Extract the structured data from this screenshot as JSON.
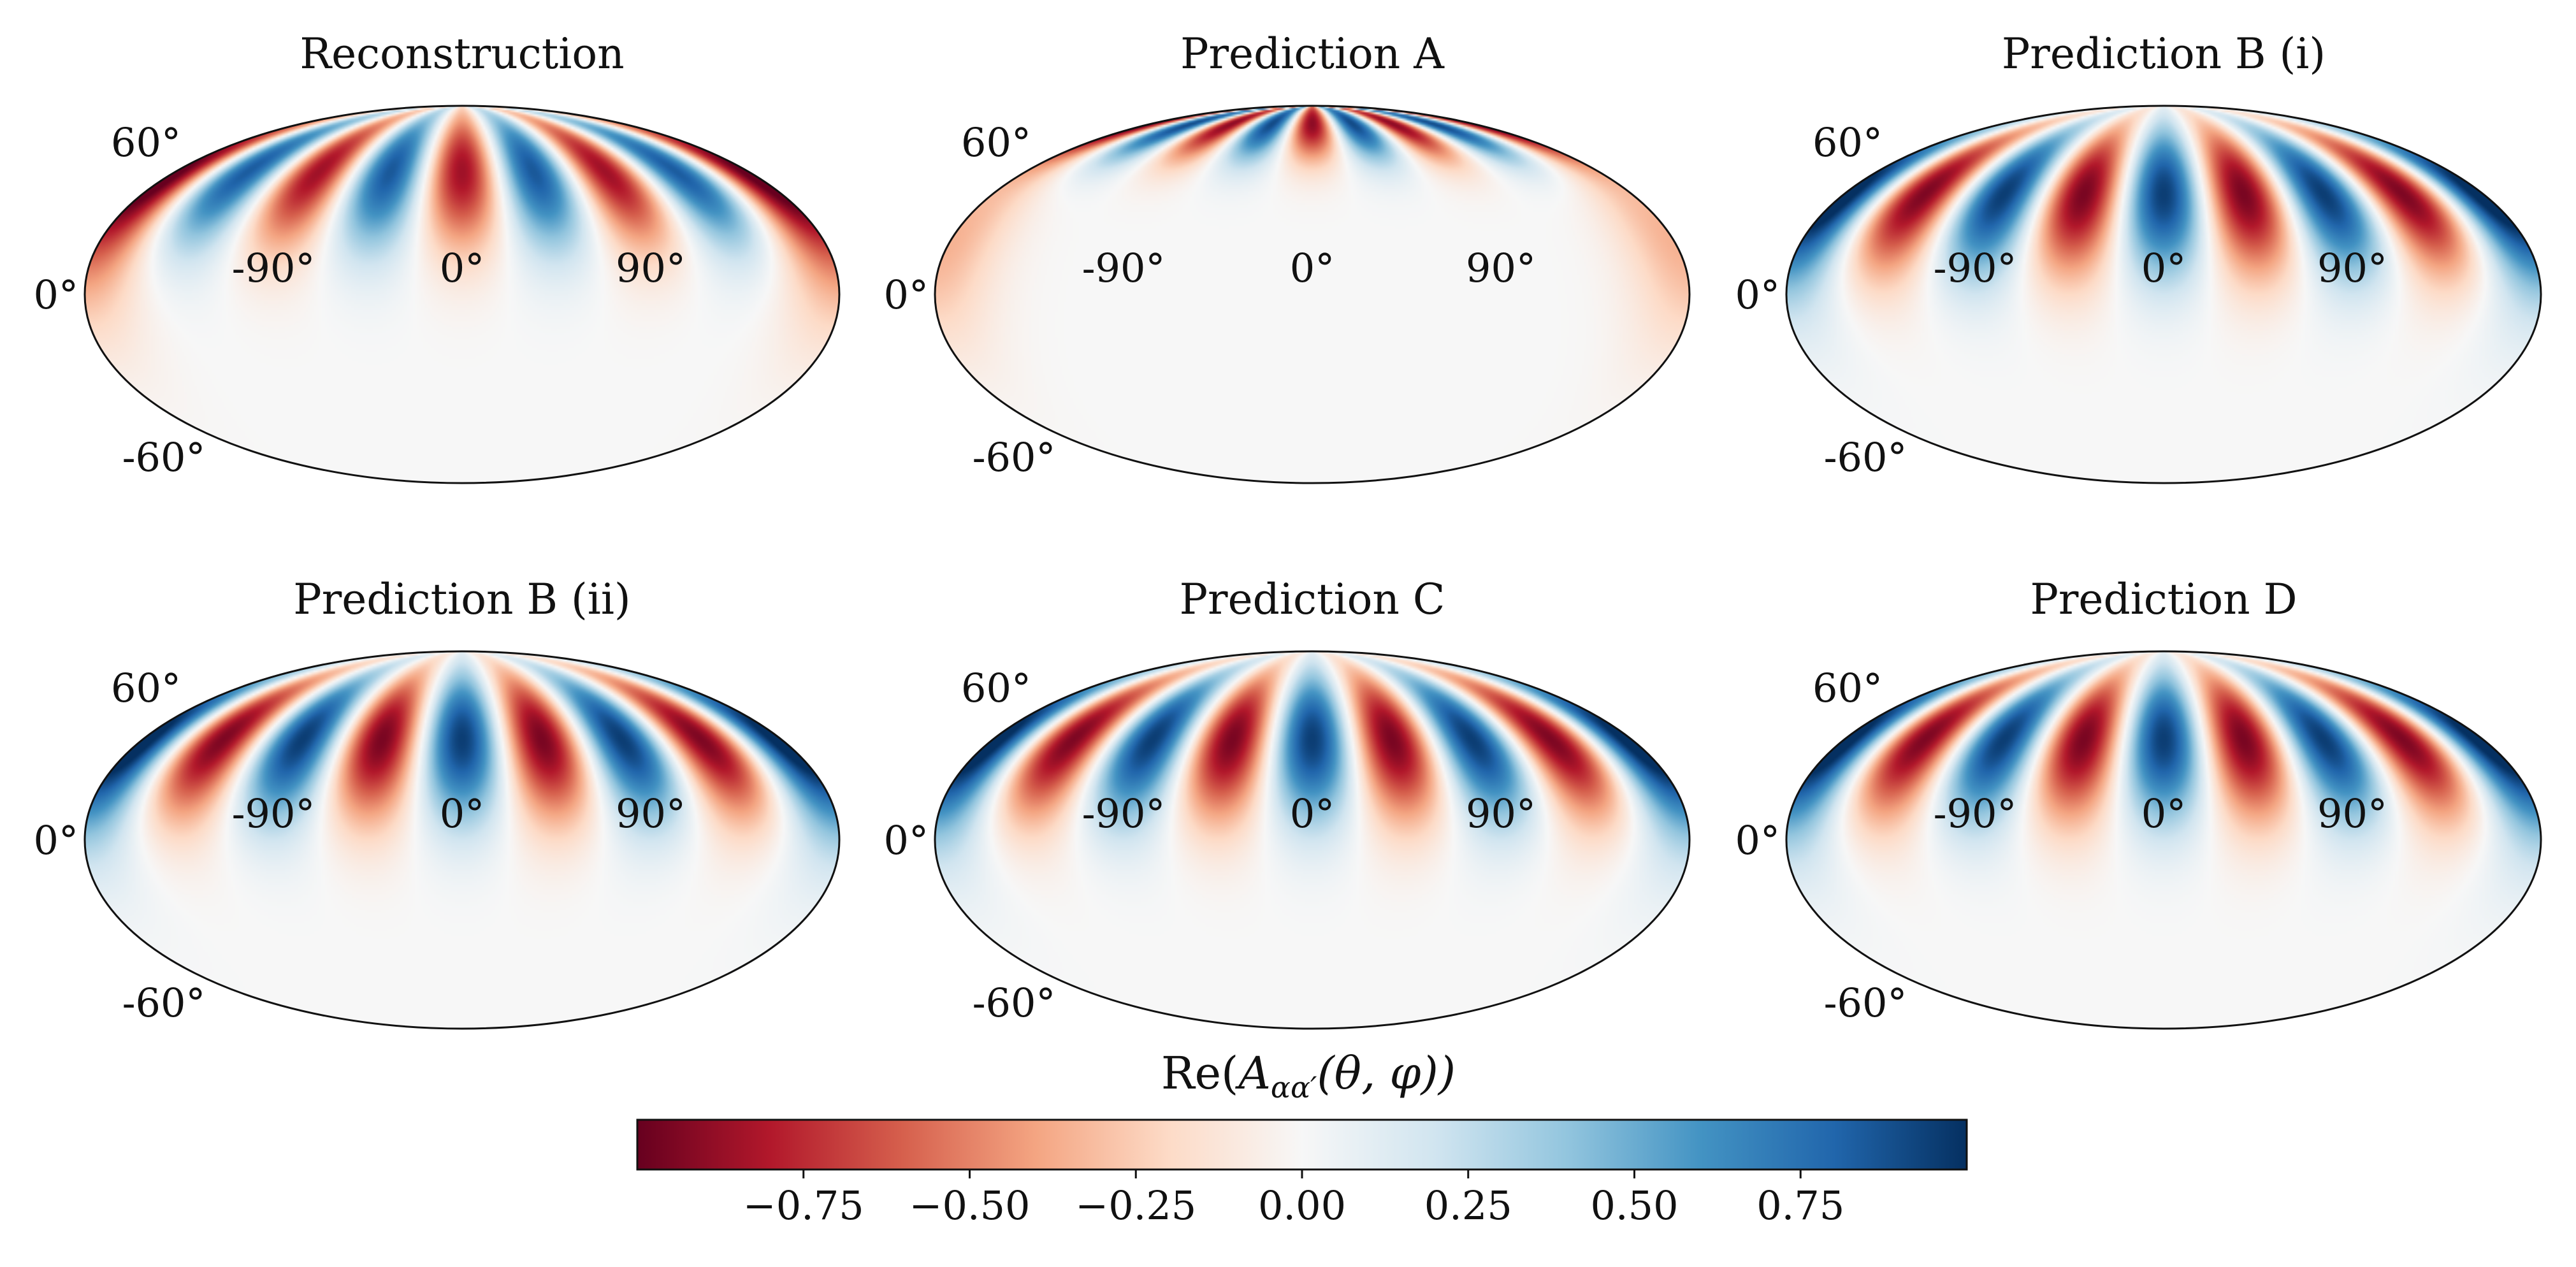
{
  "chart_data": {
    "type": "heatmap",
    "projection": "mollweide",
    "layout": {
      "rows": 2,
      "cols": 3
    },
    "colormap": "RdBu",
    "colormap_stops": [
      "#67001f",
      "#b2182b",
      "#d6604d",
      "#f4a582",
      "#fddbc7",
      "#f7f7f7",
      "#d1e5f0",
      "#92c5de",
      "#4393c3",
      "#2166ac",
      "#053061"
    ],
    "color_range": [
      -1,
      1
    ],
    "lat_tick_labels": [
      "60°",
      "0°",
      "-60°"
    ],
    "lon_tick_labels": [
      "-90°",
      "0°",
      "90°"
    ],
    "panels": [
      {
        "title": "Reconstruction",
        "pattern": {
          "m": 4,
          "phase": "cos",
          "sign": -1,
          "amp": 0.85,
          "lat_center": 50,
          "lat_width": 32,
          "edge_sign": -1
        }
      },
      {
        "title": "Prediction A",
        "pattern": {
          "m": 4,
          "phase": "cos",
          "sign": -1,
          "amp": 0.9,
          "lat_center": 75,
          "lat_width": 20,
          "edge_sign": -1
        }
      },
      {
        "title": "Prediction B (i)",
        "pattern": {
          "m": 4,
          "phase": "cos",
          "sign": 1,
          "amp": 0.95,
          "lat_center": 40,
          "lat_width": 32,
          "edge_sign": 1
        }
      },
      {
        "title": "Prediction B (ii)",
        "pattern": {
          "m": 4,
          "phase": "cos",
          "sign": 1,
          "amp": 0.95,
          "lat_center": 40,
          "lat_width": 32,
          "edge_sign": 1
        }
      },
      {
        "title": "Prediction C",
        "pattern": {
          "m": 4,
          "phase": "cos",
          "sign": 1,
          "amp": 0.95,
          "lat_center": 40,
          "lat_width": 32,
          "edge_sign": 1
        }
      },
      {
        "title": "Prediction D",
        "pattern": {
          "m": 4,
          "phase": "cos",
          "sign": 1,
          "amp": 0.95,
          "lat_center": 40,
          "lat_width": 32,
          "edge_sign": 1
        }
      }
    ],
    "colorbar": {
      "label": "Re(A_{αα'}(θ,φ))",
      "label_main": "Re(",
      "label_symbol": "A",
      "label_subscript": "αα′",
      "label_args": "(θ, φ))",
      "ticks": [
        -0.75,
        -0.5,
        -0.25,
        0.0,
        0.25,
        0.5,
        0.75
      ],
      "tick_labels": [
        "−0.75",
        "−0.50",
        "−0.25",
        "0.00",
        "0.25",
        "0.50",
        "0.75"
      ],
      "orientation": "horizontal"
    }
  }
}
